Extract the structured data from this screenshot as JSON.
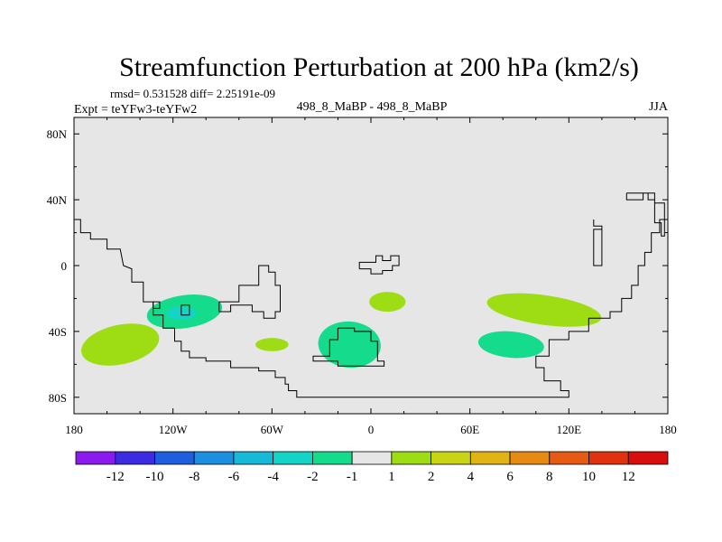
{
  "chart_data": {
    "type": "heatmap",
    "title": "Streamfunction Perturbation at 200 hPa (km2/s)",
    "subtitle_left_top": "rmsd= 0.531528 diff= 2.25191e-09",
    "subtitle_left": "Expt = teYFw3-teYFw2",
    "subtitle_center": "498_8_MaBP - 498_8_MaBP",
    "subtitle_right": "JJA",
    "x_ticks": [
      {
        "value": -180,
        "label": "180"
      },
      {
        "value": -120,
        "label": "120W"
      },
      {
        "value": -60,
        "label": "60W"
      },
      {
        "value": 0,
        "label": "0"
      },
      {
        "value": 60,
        "label": "60E"
      },
      {
        "value": 120,
        "label": "120E"
      },
      {
        "value": 180,
        "label": "180"
      }
    ],
    "y_ticks": [
      {
        "value": 80,
        "label": "80N"
      },
      {
        "value": 40,
        "label": "40N"
      },
      {
        "value": 0,
        "label": "0"
      },
      {
        "value": -40,
        "label": "40S"
      },
      {
        "value": -80,
        "label": "80S"
      }
    ],
    "xlim": [
      -180,
      180
    ],
    "ylim": [
      -90,
      90
    ],
    "background_color": "#e6e6e6",
    "colorbar": {
      "labels": [
        "-12",
        "-10",
        "-8",
        "-6",
        "-4",
        "-2",
        "-1",
        "1",
        "2",
        "4",
        "6",
        "8",
        "10",
        "12"
      ],
      "colors": [
        "#8a1aee",
        "#3c2be0",
        "#1f5fde",
        "#1d8fe0",
        "#17b9d9",
        "#14d4c6",
        "#14dc8c",
        "#e6e6e6",
        "#9edc14",
        "#c8d414",
        "#e0b414",
        "#e68a14",
        "#e65a14",
        "#e0320e",
        "#d80e0e"
      ]
    },
    "features": [
      {
        "name": "anomaly-southeast-pacific",
        "color": "#9edc14",
        "center": [
          -152,
          -48
        ],
        "radii": [
          24,
          12
        ],
        "rotate": -12
      },
      {
        "name": "anomaly-southwest-atlantic",
        "color": "#14dc8c",
        "center": [
          -113,
          -28
        ],
        "radii": [
          23,
          10
        ],
        "rotate": -8
      },
      {
        "name": "anomaly-southwest-atlantic-core",
        "color": "#14d4c6",
        "center": [
          -115,
          -29
        ],
        "radii": [
          9,
          4
        ],
        "rotate": 0
      },
      {
        "name": "anomaly-south-atlantic-small",
        "color": "#9edc14",
        "center": [
          -60,
          -48
        ],
        "radii": [
          10,
          4
        ],
        "rotate": 0
      },
      {
        "name": "anomaly-south-atlantic-east",
        "color": "#14dc8c",
        "center": [
          -13,
          -48
        ],
        "radii": [
          19,
          14
        ],
        "rotate": 5
      },
      {
        "name": "anomaly-central-africa",
        "color": "#9edc14",
        "center": [
          10,
          -22
        ],
        "radii": [
          11,
          6
        ],
        "rotate": 0
      },
      {
        "name": "anomaly-indian-ocean-north",
        "color": "#9edc14",
        "center": [
          105,
          -27
        ],
        "radii": [
          35,
          9
        ],
        "rotate": 8
      },
      {
        "name": "anomaly-indian-ocean-south",
        "color": "#14dc8c",
        "center": [
          85,
          -48
        ],
        "radii": [
          20,
          8
        ],
        "rotate": 5
      }
    ],
    "outlines": [
      [
        [
          -180,
          28
        ],
        [
          -176,
          28
        ],
        [
          -176,
          20
        ],
        [
          -170,
          20
        ],
        [
          -170,
          16
        ],
        [
          -160,
          16
        ],
        [
          -160,
          10
        ],
        [
          -152,
          10
        ],
        [
          -150,
          0
        ],
        [
          -145,
          -2
        ],
        [
          -145,
          -10
        ],
        [
          -138,
          -10
        ],
        [
          -138,
          -22
        ],
        [
          -132,
          -22
        ],
        [
          -132,
          -30
        ],
        [
          -126,
          -30
        ],
        [
          -126,
          -38
        ],
        [
          -119,
          -38
        ],
        [
          -119,
          -46
        ],
        [
          -115,
          -46
        ],
        [
          -115,
          -52
        ],
        [
          -110,
          -52
        ],
        [
          -110,
          -56
        ],
        [
          -100,
          -56
        ],
        [
          -100,
          -58
        ],
        [
          -85,
          -58
        ],
        [
          -85,
          -62
        ],
        [
          -68,
          -62
        ],
        [
          -68,
          -64
        ],
        [
          -58,
          -64
        ],
        [
          -58,
          -68
        ],
        [
          -52,
          -68
        ],
        [
          -52,
          -72
        ],
        [
          -50,
          -72
        ],
        [
          -50,
          -76
        ],
        [
          -45,
          -76
        ],
        [
          -45,
          -80
        ],
        [
          28,
          -80
        ],
        [
          68,
          -80
        ],
        [
          120,
          -80
        ],
        [
          120,
          -76
        ],
        [
          115,
          -76
        ],
        [
          115,
          -70
        ],
        [
          105,
          -70
        ],
        [
          105,
          -62
        ],
        [
          100,
          -62
        ],
        [
          100,
          -55
        ],
        [
          108,
          -55
        ],
        [
          108,
          -45
        ],
        [
          120,
          -45
        ],
        [
          120,
          -40
        ],
        [
          132,
          -40
        ],
        [
          132,
          -32
        ],
        [
          145,
          -32
        ],
        [
          145,
          -28
        ],
        [
          152,
          -28
        ],
        [
          152,
          -20
        ],
        [
          158,
          -20
        ],
        [
          158,
          -12
        ],
        [
          162,
          -12
        ],
        [
          162,
          0
        ],
        [
          166,
          0
        ],
        [
          166,
          8
        ],
        [
          170,
          8
        ],
        [
          170,
          20
        ],
        [
          175,
          20
        ],
        [
          175,
          28
        ],
        [
          180,
          28
        ]
      ],
      [
        [
          -115,
          -24
        ],
        [
          -110,
          -24
        ],
        [
          -110,
          -30
        ],
        [
          -115,
          -30
        ],
        [
          -115,
          -24
        ]
      ],
      [
        [
          -132,
          -22
        ],
        [
          -128,
          -22
        ],
        [
          -128,
          -26
        ],
        [
          -132,
          -26
        ],
        [
          -132,
          -22
        ]
      ],
      [
        [
          -92,
          -22
        ],
        [
          -80,
          -22
        ],
        [
          -80,
          -12
        ],
        [
          -68,
          -12
        ],
        [
          -68,
          0
        ],
        [
          -62,
          0
        ],
        [
          -62,
          -4
        ],
        [
          -58,
          -4
        ],
        [
          -58,
          -12
        ],
        [
          -55,
          -12
        ],
        [
          -55,
          -28
        ],
        [
          -58,
          -28
        ],
        [
          -58,
          -32
        ],
        [
          -65,
          -32
        ],
        [
          -65,
          -28
        ],
        [
          -72,
          -28
        ],
        [
          -72,
          -24
        ],
        [
          -85,
          -24
        ],
        [
          -85,
          -28
        ],
        [
          -92,
          -28
        ],
        [
          -92,
          -22
        ]
      ],
      [
        [
          -7,
          -2
        ],
        [
          -7,
          2
        ],
        [
          3,
          2
        ],
        [
          3,
          6
        ],
        [
          7,
          6
        ],
        [
          7,
          3
        ],
        [
          12,
          3
        ],
        [
          12,
          6
        ],
        [
          17,
          6
        ],
        [
          17,
          0
        ],
        [
          13,
          0
        ],
        [
          13,
          -3
        ],
        [
          7,
          -3
        ],
        [
          7,
          -5
        ],
        [
          0,
          -5
        ],
        [
          0,
          -2
        ],
        [
          -7,
          -2
        ]
      ],
      [
        [
          -20,
          -38
        ],
        [
          -10,
          -38
        ],
        [
          -10,
          -40
        ],
        [
          0,
          -40
        ],
        [
          0,
          -46
        ],
        [
          4,
          -46
        ],
        [
          4,
          -58
        ],
        [
          8,
          -58
        ],
        [
          8,
          -61
        ],
        [
          -20,
          -61
        ],
        [
          -20,
          -58
        ],
        [
          -35,
          -58
        ],
        [
          -35,
          -55
        ],
        [
          -25,
          -55
        ],
        [
          -25,
          -45
        ],
        [
          -20,
          -45
        ],
        [
          -20,
          -38
        ]
      ],
      [
        [
          135,
          28
        ],
        [
          135,
          24
        ],
        [
          140,
          24
        ],
        [
          140,
          0
        ],
        [
          135,
          0
        ],
        [
          135,
          22
        ],
        [
          140,
          22
        ]
      ],
      [
        [
          155,
          44
        ],
        [
          155,
          40
        ],
        [
          165,
          40
        ],
        [
          165,
          44
        ],
        [
          172,
          44
        ],
        [
          172,
          38
        ],
        [
          178,
          38
        ],
        [
          178,
          18
        ],
        [
          176,
          18
        ],
        [
          176,
          26
        ],
        [
          172,
          26
        ],
        [
          172,
          40
        ],
        [
          168,
          40
        ],
        [
          168,
          44
        ],
        [
          155,
          44
        ]
      ]
    ]
  }
}
